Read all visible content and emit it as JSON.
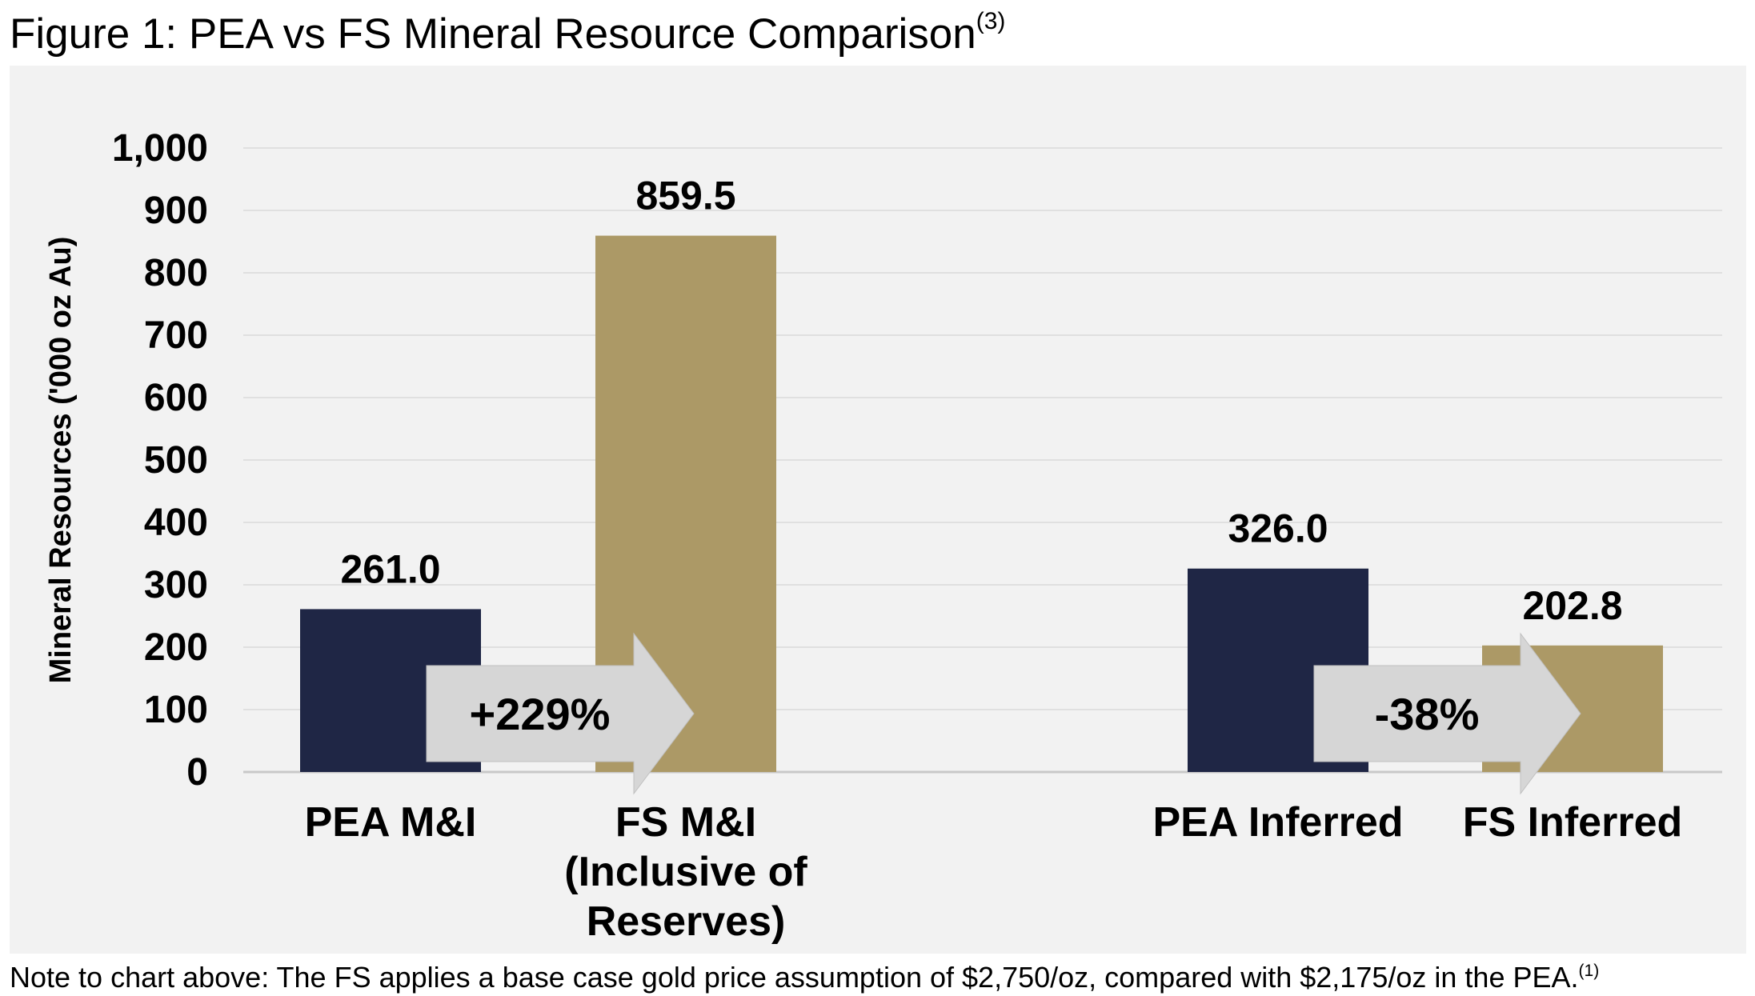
{
  "figure": {
    "title": "Figure 1: PEA vs FS Mineral Resource Comparison",
    "title_superscript": "(3)"
  },
  "note": {
    "text": "Note to chart above: The FS applies a base case gold price assumption of $2,750/oz, compared with $2,175/oz in the PEA.",
    "superscript": "(1)"
  },
  "colors": {
    "pea": "#1f2645",
    "fs": "#ac9966",
    "arrow": "#d6d6d6",
    "panel": "#f2f2f2",
    "grid": "#d9d9d9",
    "axis": "#c8c8c8"
  },
  "chart_data": {
    "type": "bar",
    "ylabel": "Mineral Resources  ('000 oz Au)",
    "ylim": [
      0,
      1000
    ],
    "yticks": [
      0,
      100,
      200,
      300,
      400,
      500,
      600,
      700,
      800,
      900,
      1000
    ],
    "ytick_labels": [
      "0",
      "100",
      "200",
      "300",
      "400",
      "500",
      "600",
      "700",
      "800",
      "900",
      "1,000"
    ],
    "grid": true,
    "categories": [
      [
        "PEA M&I"
      ],
      [
        "FS M&I",
        "(Inclusive of",
        "Reserves)"
      ],
      [
        "PEA Inferred"
      ],
      [
        "FS Inferred"
      ]
    ],
    "values": [
      261.0,
      859.5,
      326.0,
      202.8
    ],
    "value_labels": [
      "261.0",
      "859.5",
      "326.0",
      "202.8"
    ],
    "bar_series": [
      "pea",
      "fs",
      "pea",
      "fs"
    ],
    "annotations": [
      {
        "text": "+229%",
        "from": 0,
        "to": 1
      },
      {
        "text": "-38%",
        "from": 2,
        "to": 3
      }
    ]
  }
}
